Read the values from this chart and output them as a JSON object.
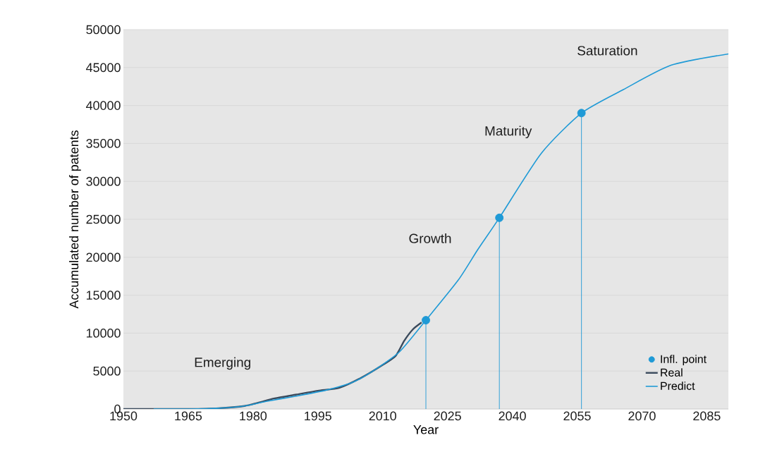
{
  "chart_data": {
    "type": "line",
    "xlabel": "Year",
    "ylabel": "Accumulated number of patents",
    "xlim": [
      1950,
      2090
    ],
    "ylim": [
      0,
      50000
    ],
    "xticks": [
      1950,
      1965,
      1980,
      1995,
      2010,
      2025,
      2040,
      2055,
      2070,
      2085
    ],
    "yticks": [
      0,
      5000,
      10000,
      15000,
      20000,
      25000,
      30000,
      35000,
      40000,
      45000,
      50000
    ],
    "grid": "y",
    "legend": "bottom right",
    "annotations": [
      "Emerging",
      "Growth",
      "Maturity",
      "Saturation"
    ],
    "series": [
      {
        "name": "Infl. point",
        "type": "lollipop",
        "marker": "circle",
        "color": "#1f9ad6",
        "x": [
          2020,
          2037,
          2056
        ],
        "values": [
          11700,
          25200,
          39000
        ]
      },
      {
        "name": "Real",
        "color": "#3a4a5c",
        "x": [
          1950,
          1957,
          1965,
          1972,
          1978,
          1981,
          1985,
          1990,
          1995,
          2000,
          2005,
          2010,
          2013,
          2015,
          2017,
          2019
        ],
        "values": [
          0,
          0,
          0,
          100,
          400,
          800,
          1400,
          1900,
          2400,
          2800,
          4100,
          5800,
          7000,
          9000,
          10500,
          11400
        ]
      },
      {
        "name": "Predict",
        "color": "#1f9ad6",
        "x": [
          1957,
          1965,
          1972,
          1978,
          1983,
          1990,
          1997,
          2003,
          2008,
          2014,
          2020,
          2027.5,
          2032,
          2037,
          2046.7,
          2056,
          2065.7,
          2076.7,
          2090
        ],
        "values": [
          0,
          0,
          100,
          400,
          1000,
          1700,
          2500,
          3500,
          5100,
          7600,
          11700,
          17000,
          21000,
          25200,
          33700,
          39000,
          42100,
          45300,
          46800
        ]
      }
    ]
  }
}
